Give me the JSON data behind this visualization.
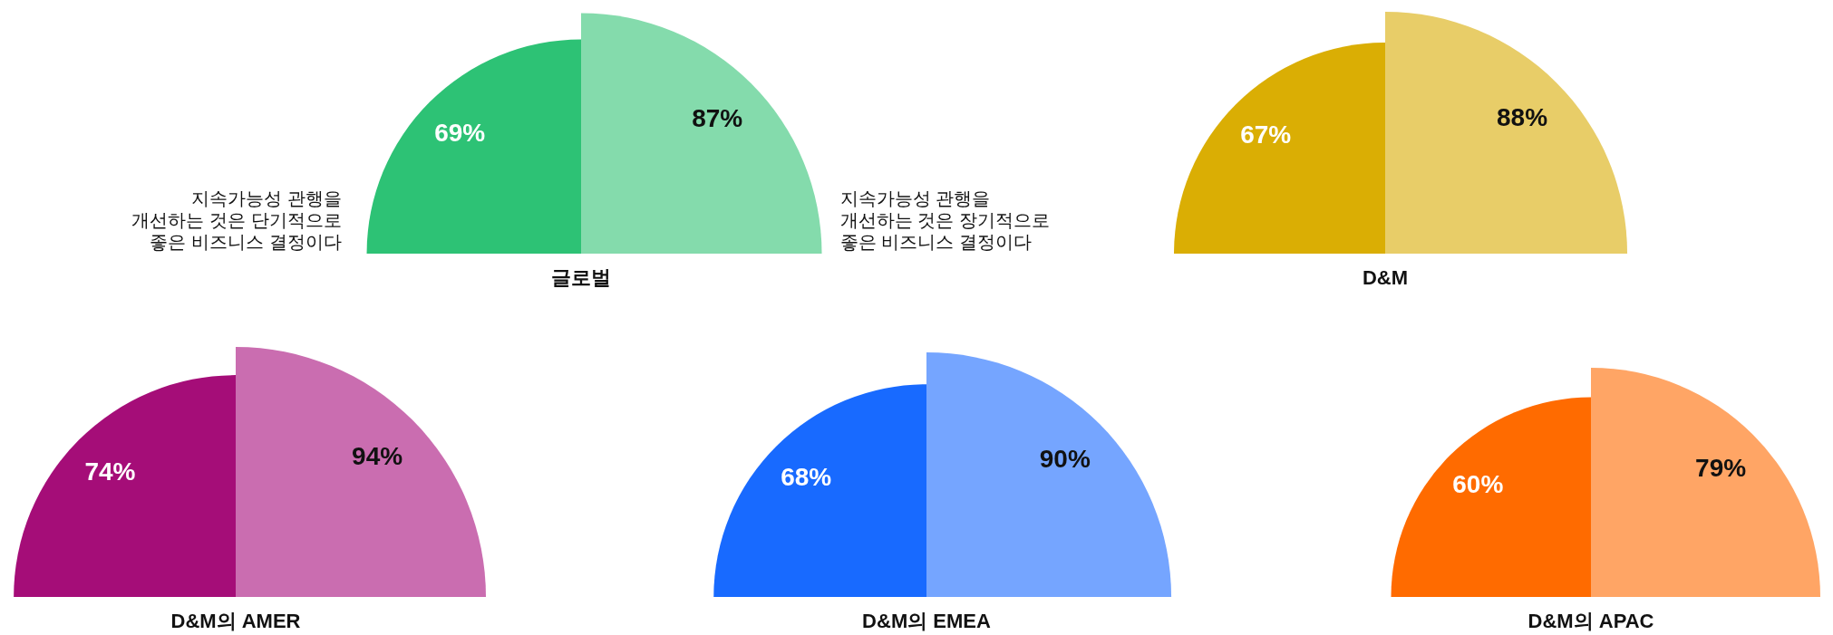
{
  "chart_data": [
    {
      "type": "other",
      "title": "글로벌",
      "categories": [
        "지속가능성 관행을 개선하는 것은 단기적으로 좋은 비즈니스 결정이다",
        "지속가능성 관행을 개선하는 것은 장기적으로 좋은 비즈니스 결정이다"
      ],
      "values": [
        69,
        87
      ],
      "value_labels": [
        "69%",
        "87%"
      ],
      "colors": [
        "#2dc275",
        "#84dbac"
      ]
    },
    {
      "type": "other",
      "title": "D&M",
      "categories": [
        null,
        null
      ],
      "values": [
        67,
        88
      ],
      "value_labels": [
        "67%",
        "88%"
      ],
      "colors": [
        "#daae04",
        "#e8cd68"
      ]
    },
    {
      "type": "other",
      "title": "D&M의 AMER",
      "categories": [
        null,
        null
      ],
      "values": [
        74,
        94
      ],
      "value_labels": [
        "74%",
        "94%"
      ],
      "colors": [
        "#a50d78",
        "#ca6db0"
      ]
    },
    {
      "type": "other",
      "title": "D&M의 EMEA",
      "categories": [
        null,
        null
      ],
      "values": [
        68,
        90
      ],
      "value_labels": [
        "68%",
        "90%"
      ],
      "colors": [
        "#186aff",
        "#75a5ff"
      ]
    },
    {
      "type": "other",
      "title": "D&M의 APAC",
      "categories": [
        null,
        null
      ],
      "values": [
        60,
        79
      ],
      "value_labels": [
        "60%",
        "79%"
      ],
      "colors": [
        "#ff6b00",
        "#ffa565"
      ]
    }
  ]
}
